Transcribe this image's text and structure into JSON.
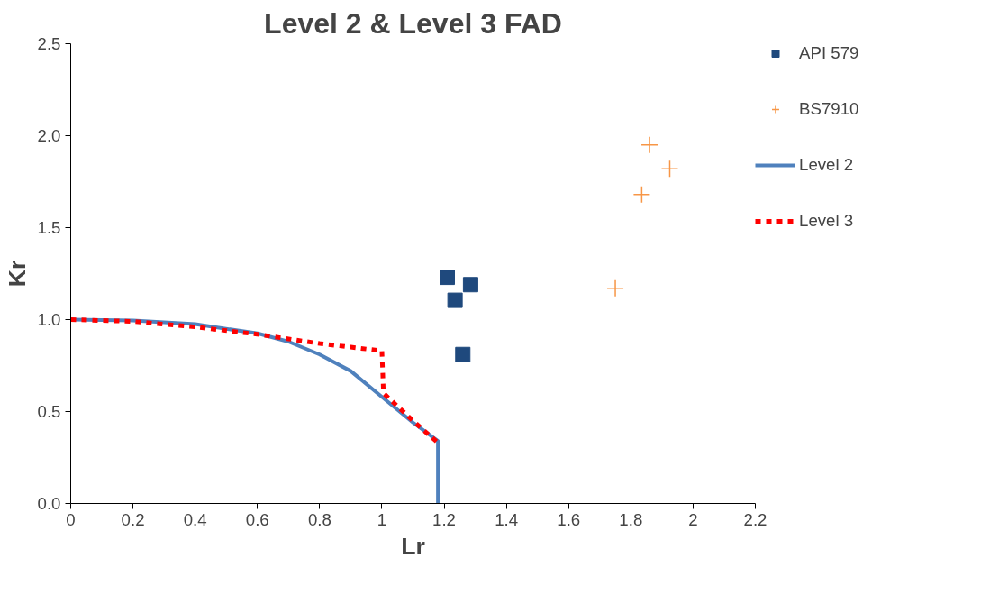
{
  "chart_data": {
    "type": "scatter",
    "title": "Level 2 & Level 3 FAD",
    "xlabel": "Lr",
    "ylabel": "Kr",
    "xlim": [
      0,
      2.2
    ],
    "ylim": [
      0,
      2.5
    ],
    "xticks": [
      0,
      0.2,
      0.4,
      0.6,
      0.8,
      1,
      1.2,
      1.4,
      1.6,
      1.8,
      2,
      2.2
    ],
    "yticks": [
      {
        "value": 0,
        "label": "0.0"
      },
      {
        "value": 0.5,
        "label": "0.5"
      },
      {
        "value": 1,
        "label": "1.0"
      },
      {
        "value": 1.5,
        "label": "1.5"
      },
      {
        "value": 2,
        "label": "2.0"
      },
      {
        "value": 2.5,
        "label": "2.5"
      }
    ],
    "grid": false,
    "legend": "right",
    "series": [
      {
        "name": "API 579",
        "marker": "square",
        "color": "#1f497d",
        "x": [
          1.21,
          1.235,
          1.285,
          1.26
        ],
        "values": [
          1.23,
          1.105,
          1.19,
          0.81
        ]
      },
      {
        "name": "BS7910",
        "marker": "cross",
        "color": "#f79646",
        "x": [
          1.86,
          1.925,
          1.835,
          1.75
        ],
        "values": [
          1.95,
          1.82,
          1.68,
          1.17
        ]
      },
      {
        "name": "Level 2",
        "type": "line",
        "marker": "none",
        "line_style": "solid",
        "color": "#4f81bd",
        "x": [
          0,
          0.2,
          0.4,
          0.6,
          0.7,
          0.8,
          0.9,
          1.0,
          1.1,
          1.18,
          1.18
        ],
        "values": [
          1.0,
          0.995,
          0.975,
          0.925,
          0.88,
          0.81,
          0.72,
          0.58,
          0.44,
          0.34,
          0
        ]
      },
      {
        "name": "Level 3",
        "type": "line",
        "marker": "none",
        "line_style": "dashed",
        "color": "#ff0000",
        "x": [
          0,
          0.2,
          0.4,
          0.6,
          0.7,
          0.8,
          0.9,
          1.0,
          1.005,
          1.1,
          1.18
        ],
        "values": [
          1.0,
          0.99,
          0.96,
          0.92,
          0.895,
          0.87,
          0.85,
          0.83,
          0.6,
          0.45,
          0.33
        ]
      }
    ]
  }
}
